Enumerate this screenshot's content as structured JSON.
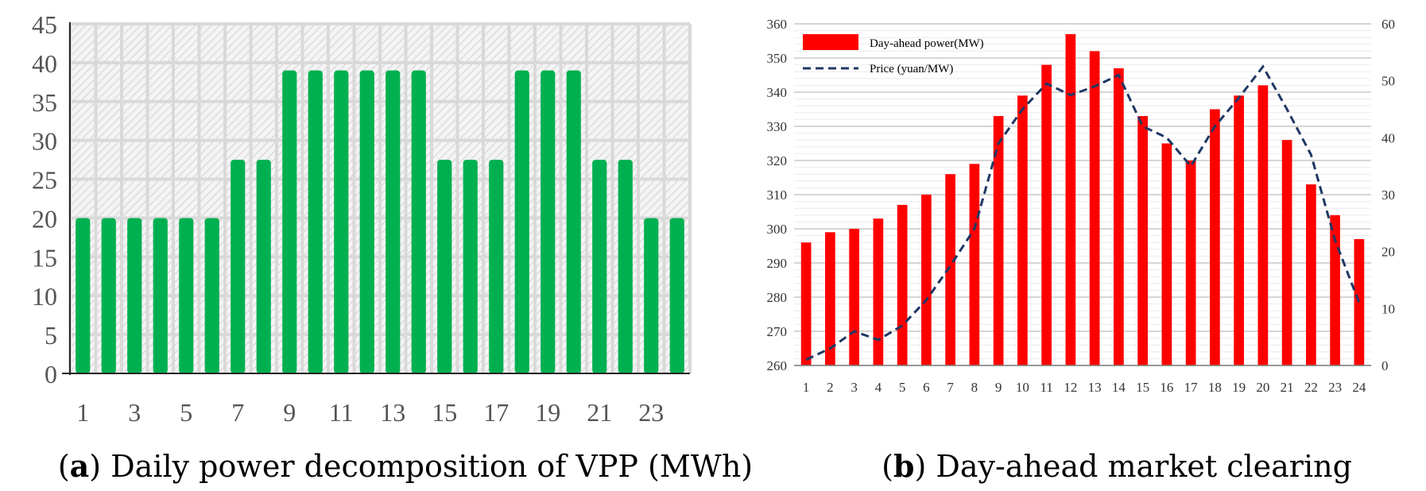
{
  "colors": {
    "bar_a": "#00b050",
    "bar_b": "#ff0000",
    "line_b": "#1f3864",
    "grid_a": "#d9d9d9",
    "plot_bg_a": "#f2f2f2",
    "grid_b": "#d0d0d0"
  },
  "chart_data": [
    {
      "type": "bar",
      "caption_letter": "a",
      "caption_text": "Daily power decomposition of VPP (MWh)",
      "categories": [
        1,
        2,
        3,
        4,
        5,
        6,
        7,
        8,
        9,
        10,
        11,
        12,
        13,
        14,
        15,
        16,
        17,
        18,
        19,
        20,
        21,
        22,
        23,
        24
      ],
      "xtick_labels": [
        "1",
        "3",
        "5",
        "7",
        "9",
        "11",
        "13",
        "15",
        "17",
        "19",
        "21",
        "23"
      ],
      "yticks": [
        0,
        5,
        10,
        15,
        20,
        25,
        30,
        35,
        40,
        45
      ],
      "ylim": [
        0,
        45
      ],
      "values": [
        20,
        20,
        20,
        20,
        20,
        20,
        27.5,
        27.5,
        39,
        39,
        39,
        39,
        39,
        39,
        27.5,
        27.5,
        27.5,
        39,
        39,
        39,
        27.5,
        27.5,
        20,
        20
      ],
      "grid": true
    },
    {
      "type": "bar+line",
      "caption_letter": "b",
      "caption_text": "Day-ahead market clearing",
      "categories": [
        "1",
        "2",
        "3",
        "4",
        "5",
        "6",
        "7",
        "8",
        "9",
        "10",
        "11",
        "12",
        "13",
        "14",
        "15",
        "16",
        "17",
        "18",
        "19",
        "20",
        "21",
        "22",
        "23",
        "24"
      ],
      "y_left_ticks": [
        260,
        270,
        280,
        290,
        300,
        310,
        320,
        330,
        340,
        350,
        360
      ],
      "y_left_lim": [
        260,
        360
      ],
      "y_right_ticks": [
        0,
        10,
        20,
        30,
        40,
        50,
        60
      ],
      "y_right_lim": [
        0,
        60
      ],
      "legend": [
        "Day-ahead power(MW)",
        "Price (yuan/MW)"
      ],
      "legend_position": "top-left",
      "series": [
        {
          "name": "Day-ahead power(MW)",
          "kind": "bar",
          "axis": "left",
          "values": [
            296,
            299,
            300,
            303,
            307,
            310,
            316,
            319,
            333,
            339,
            348,
            357,
            352,
            347,
            333,
            325,
            320,
            335,
            339,
            342,
            326,
            313,
            304,
            297
          ]
        },
        {
          "name": "Price (yuan/MW)",
          "kind": "line",
          "axis": "right",
          "values": [
            1,
            3,
            6,
            4.5,
            7,
            11.5,
            17.5,
            24,
            39,
            45,
            49.5,
            47.5,
            49,
            51,
            42,
            40,
            35,
            42,
            47,
            52.5,
            45,
            37,
            22,
            11
          ]
        }
      ]
    }
  ]
}
